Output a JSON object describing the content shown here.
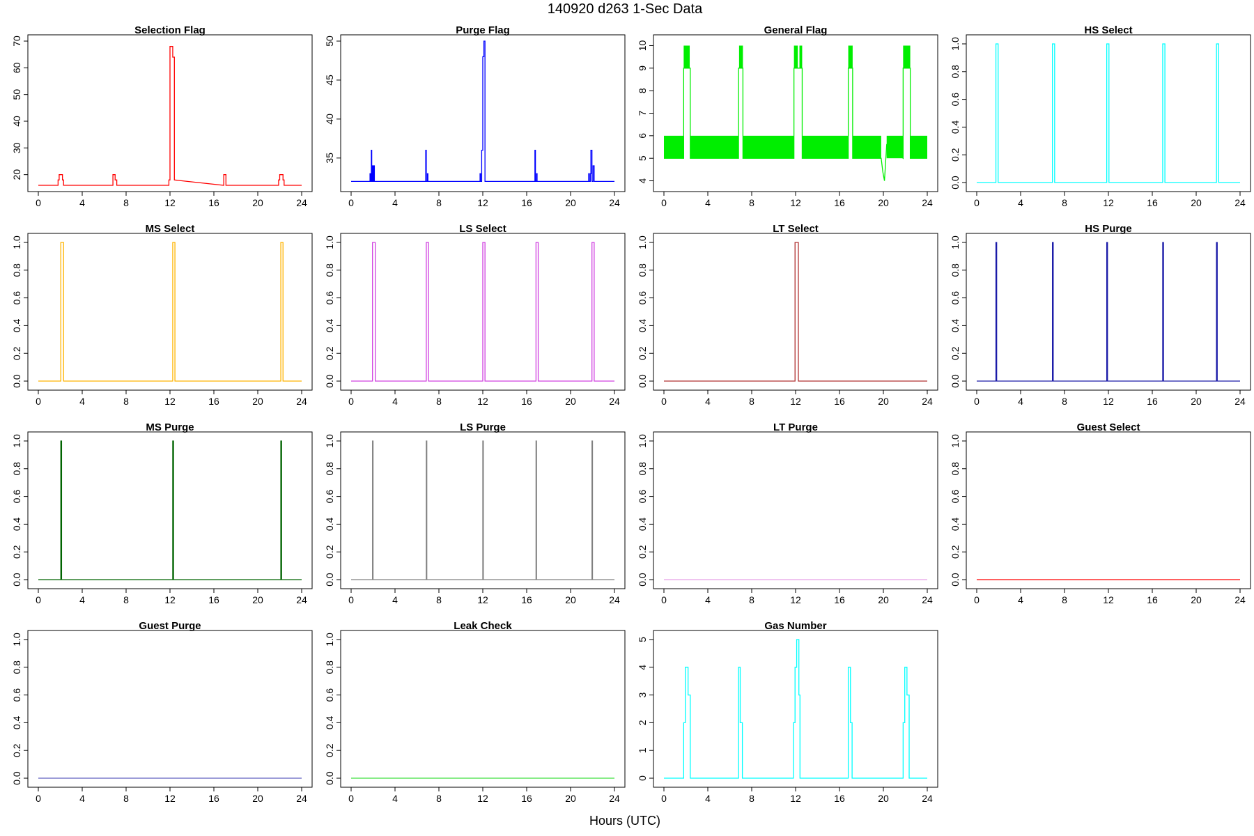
{
  "title": "140920   d263   1-Sec Data",
  "xlabel": "Hours (UTC)",
  "chart_data": [
    {
      "type": "line",
      "title": "Selection Flag",
      "color": "#ff0000",
      "xlim": [
        0,
        24
      ],
      "ylim": [
        16,
        70
      ],
      "xticks": [
        "0",
        "4",
        "8",
        "12",
        "16",
        "20",
        "24"
      ],
      "yticks": [
        "20",
        "30",
        "40",
        "50",
        "60",
        "70"
      ],
      "step": true,
      "x": [
        0,
        1.8,
        1.8,
        1.9,
        1.9,
        2.2,
        2.2,
        2.3,
        2.3,
        6.8,
        6.8,
        7.0,
        7.0,
        7.15,
        7.15,
        11.9,
        11.9,
        12.0,
        12.0,
        12.25,
        12.25,
        12.4,
        12.4,
        16.9,
        16.9,
        17.1,
        17.1,
        21.9,
        21.9,
        22.0,
        22.0,
        22.3,
        22.3,
        22.4,
        22.4,
        24
      ],
      "y": [
        16,
        16,
        18,
        18,
        20,
        20,
        18,
        18,
        16,
        16,
        20,
        20,
        18,
        18,
        16,
        16,
        18,
        18,
        68,
        68,
        64,
        64,
        18,
        16,
        20,
        20,
        16,
        16,
        18,
        18,
        20,
        20,
        18,
        18,
        16,
        16
      ]
    },
    {
      "type": "line",
      "title": "Purge Flag",
      "color": "#0000ff",
      "xlim": [
        0,
        24
      ],
      "ylim": [
        31.5,
        50
      ],
      "xticks": [
        "0",
        "4",
        "8",
        "12",
        "16",
        "20",
        "24"
      ],
      "yticks": [
        "35",
        "40",
        "45",
        "50"
      ],
      "x": [
        0,
        1.72,
        1.72,
        1.76,
        1.76,
        1.84,
        1.84,
        1.88,
        1.88,
        1.96,
        1.96,
        2.0,
        2.0,
        2.08,
        2.08,
        2.12,
        2.12,
        6.8,
        6.8,
        6.85,
        6.85,
        6.95,
        6.95,
        7.0,
        7.0,
        11.75,
        11.75,
        11.8,
        11.8,
        11.9,
        11.9,
        12.0,
        12.0,
        12.1,
        12.1,
        12.2,
        12.2,
        12.3,
        12.3,
        16.75,
        16.75,
        16.8,
        16.8,
        16.9,
        16.9,
        16.95,
        16.95,
        21.65,
        21.65,
        21.7,
        21.7,
        21.8,
        21.8,
        21.85,
        21.85,
        21.95,
        21.95,
        22.05,
        22.05,
        22.15,
        22.15,
        24
      ],
      "y": [
        32,
        32,
        33,
        33,
        32,
        32,
        36,
        36,
        32,
        32,
        34,
        34,
        32,
        32,
        34,
        34,
        32,
        32,
        36,
        36,
        32,
        32,
        33,
        33,
        32,
        32,
        33,
        33,
        32,
        32,
        36,
        36,
        48,
        48,
        50,
        50,
        32,
        32,
        32,
        32,
        36,
        36,
        32,
        32,
        33,
        33,
        32,
        32,
        33,
        33,
        32,
        32,
        33,
        33,
        36,
        36,
        32,
        32,
        34,
        34,
        32,
        32
      ]
    },
    {
      "type": "line",
      "title": "General Flag",
      "color": "#00ee00",
      "xlim": [
        0,
        24
      ],
      "ylim": [
        3.8,
        10.2
      ],
      "xticks": [
        "0",
        "4",
        "8",
        "12",
        "16",
        "20",
        "24"
      ],
      "yticks": [
        "4",
        "5",
        "6",
        "7",
        "8",
        "9",
        "10"
      ],
      "bands": [
        [
          0,
          1.8,
          5,
          6
        ],
        [
          2.4,
          6.8,
          5,
          6
        ],
        [
          7.2,
          11.85,
          5,
          6
        ],
        [
          12.6,
          16.8,
          5,
          6
        ],
        [
          17.2,
          19.8,
          5,
          6
        ],
        [
          20.3,
          21.8,
          5,
          6
        ],
        [
          22.45,
          24,
          5,
          6
        ],
        [
          1.8,
          2.35,
          9,
          10
        ],
        [
          6.85,
          7.2,
          9,
          10
        ],
        [
          11.85,
          12.2,
          9,
          10
        ],
        [
          12.35,
          12.6,
          9,
          10
        ],
        [
          16.8,
          17.2,
          9,
          10
        ],
        [
          21.8,
          22.45,
          9,
          10
        ]
      ],
      "x": [
        0,
        1.8,
        1.8,
        2.4,
        2.4,
        6.8,
        6.8,
        7.2,
        7.2,
        11.85,
        11.85,
        12.6,
        12.6,
        16.8,
        16.8,
        17.2,
        17.2,
        19.8,
        19.95,
        20.1,
        20.3,
        21.8,
        21.8,
        22.45,
        22.45,
        24
      ],
      "y": [
        5,
        5,
        9,
        9,
        5,
        5,
        9,
        9,
        5,
        5,
        9,
        9,
        5,
        5,
        9,
        9,
        5,
        5,
        4.4,
        4,
        5.6,
        5,
        9,
        9,
        5,
        5
      ]
    },
    {
      "type": "line",
      "title": "HS Select",
      "color": "#00ffff",
      "xlim": [
        0,
        24
      ],
      "ylim": [
        -0.02,
        1.02
      ],
      "xticks": [
        "0",
        "4",
        "8",
        "12",
        "16",
        "20",
        "24"
      ],
      "yticks": [
        "0.0",
        "0.2",
        "0.4",
        "0.6",
        "0.8",
        "1.0"
      ],
      "x": [
        0,
        1.75,
        1.75,
        1.95,
        1.95,
        6.9,
        6.9,
        7.1,
        7.1,
        11.85,
        11.85,
        12.05,
        12.05,
        16.95,
        16.95,
        17.15,
        17.15,
        21.85,
        21.85,
        22.05,
        22.05,
        24
      ],
      "y": [
        0,
        0,
        1,
        1,
        0,
        0,
        1,
        1,
        0,
        0,
        1,
        1,
        0,
        0,
        1,
        1,
        0,
        0,
        1,
        1,
        0,
        0
      ]
    },
    {
      "type": "line",
      "title": "MS Select",
      "color": "#ffb400",
      "xlim": [
        0,
        24
      ],
      "ylim": [
        -0.02,
        1.02
      ],
      "xticks": [
        "0",
        "4",
        "8",
        "12",
        "16",
        "20",
        "24"
      ],
      "yticks": [
        "0.0",
        "0.2",
        "0.4",
        "0.6",
        "0.8",
        "1.0"
      ],
      "x": [
        0,
        2.05,
        2.05,
        2.3,
        2.3,
        12.25,
        12.25,
        12.45,
        12.45,
        22.1,
        22.1,
        22.3,
        22.3,
        24
      ],
      "y": [
        0,
        0,
        1,
        1,
        0,
        0,
        1,
        1,
        0,
        0,
        1,
        1,
        0,
        0
      ]
    },
    {
      "type": "line",
      "title": "LS Select",
      "color": "#d040e0",
      "xlim": [
        0,
        24
      ],
      "ylim": [
        -0.02,
        1.02
      ],
      "xticks": [
        "0",
        "4",
        "8",
        "12",
        "16",
        "20",
        "24"
      ],
      "yticks": [
        "0.0",
        "0.2",
        "0.4",
        "0.6",
        "0.8",
        "1.0"
      ],
      "x": [
        0,
        1.95,
        1.95,
        2.2,
        2.2,
        6.85,
        6.85,
        7.05,
        7.05,
        12.0,
        12.0,
        12.2,
        12.2,
        16.85,
        16.85,
        17.05,
        17.05,
        21.95,
        21.95,
        22.15,
        22.15,
        24
      ],
      "y": [
        0,
        0,
        1,
        1,
        0,
        0,
        1,
        1,
        0,
        0,
        1,
        1,
        0,
        0,
        1,
        1,
        0,
        0,
        1,
        1,
        0,
        0
      ]
    },
    {
      "type": "line",
      "title": "LT Select",
      "color": "#b03030",
      "xlim": [
        0,
        24
      ],
      "ylim": [
        -0.02,
        1.02
      ],
      "xticks": [
        "0",
        "4",
        "8",
        "12",
        "16",
        "20",
        "24"
      ],
      "yticks": [
        "0.0",
        "0.2",
        "0.4",
        "0.6",
        "0.8",
        "1.0"
      ],
      "x": [
        0,
        11.95,
        11.95,
        12.25,
        12.25,
        24
      ],
      "y": [
        0,
        0,
        1,
        1,
        0,
        0
      ]
    },
    {
      "type": "line",
      "title": "HS Purge",
      "color": "#1a1aa8",
      "xlim": [
        0,
        24
      ],
      "ylim": [
        -0.02,
        1.02
      ],
      "xticks": [
        "0",
        "4",
        "8",
        "12",
        "16",
        "20",
        "24"
      ],
      "yticks": [
        "0.0",
        "0.2",
        "0.4",
        "0.6",
        "0.8",
        "1.0"
      ],
      "x": [
        0,
        1.75,
        1.75,
        1.82,
        1.82,
        6.9,
        6.9,
        6.97,
        6.97,
        11.85,
        11.85,
        11.92,
        11.92,
        16.95,
        16.95,
        17.02,
        17.02,
        21.85,
        21.85,
        21.92,
        21.92,
        24
      ],
      "y": [
        0,
        0,
        1,
        1,
        0,
        0,
        1,
        1,
        0,
        0,
        1,
        1,
        0,
        0,
        1,
        1,
        0,
        0,
        1,
        1,
        0,
        0
      ]
    },
    {
      "type": "line",
      "title": "MS Purge",
      "color": "#006400",
      "xlim": [
        0,
        24
      ],
      "ylim": [
        -0.02,
        1.02
      ],
      "xticks": [
        "0",
        "4",
        "8",
        "12",
        "16",
        "20",
        "24"
      ],
      "yticks": [
        "0.0",
        "0.2",
        "0.4",
        "0.6",
        "0.8",
        "1.0"
      ],
      "x": [
        0,
        2.05,
        2.05,
        2.12,
        2.12,
        12.25,
        12.25,
        12.32,
        12.32,
        22.1,
        22.1,
        22.17,
        22.17,
        24
      ],
      "y": [
        0,
        0,
        1,
        1,
        0,
        0,
        1,
        1,
        0,
        0,
        1,
        1,
        0,
        0
      ]
    },
    {
      "type": "line",
      "title": "LS Purge",
      "color": "#808080",
      "xlim": [
        0,
        24
      ],
      "ylim": [
        -0.02,
        1.02
      ],
      "xticks": [
        "0",
        "4",
        "8",
        "12",
        "16",
        "20",
        "24"
      ],
      "yticks": [
        "0.0",
        "0.2",
        "0.4",
        "0.6",
        "0.8",
        "1.0"
      ],
      "x": [
        0,
        1.95,
        1.95,
        2.0,
        2.0,
        6.85,
        6.85,
        6.9,
        6.9,
        12.0,
        12.0,
        12.05,
        12.05,
        16.85,
        16.85,
        16.9,
        16.9,
        21.95,
        21.95,
        22.0,
        22.0,
        24
      ],
      "y": [
        0,
        0,
        1,
        1,
        0,
        0,
        1,
        1,
        0,
        0,
        1,
        1,
        0,
        0,
        1,
        1,
        0,
        0,
        1,
        1,
        0,
        0
      ]
    },
    {
      "type": "line",
      "title": "LT Purge",
      "color": "#e8a0e8",
      "xlim": [
        0,
        24
      ],
      "ylim": [
        -0.02,
        1.02
      ],
      "xticks": [
        "0",
        "4",
        "8",
        "12",
        "16",
        "20",
        "24"
      ],
      "yticks": [
        "0.0",
        "0.2",
        "0.4",
        "0.6",
        "0.8",
        "1.0"
      ],
      "x": [
        0,
        24
      ],
      "y": [
        0,
        0
      ]
    },
    {
      "type": "line",
      "title": "Guest Select",
      "color": "#ff0000",
      "xlim": [
        0,
        24
      ],
      "ylim": [
        -0.02,
        1.02
      ],
      "xticks": [
        "0",
        "4",
        "8",
        "12",
        "16",
        "20",
        "24"
      ],
      "yticks": [
        "0.0",
        "0.2",
        "0.4",
        "0.6",
        "0.8",
        "1.0"
      ],
      "x": [
        0,
        24
      ],
      "y": [
        0,
        0
      ]
    },
    {
      "type": "line",
      "title": "Guest Purge",
      "color": "#6060c0",
      "xlim": [
        0,
        24
      ],
      "ylim": [
        -0.02,
        1.02
      ],
      "xticks": [
        "0",
        "4",
        "8",
        "12",
        "16",
        "20",
        "24"
      ],
      "yticks": [
        "0.0",
        "0.2",
        "0.4",
        "0.6",
        "0.8",
        "1.0"
      ],
      "x": [
        0,
        24
      ],
      "y": [
        0,
        0
      ]
    },
    {
      "type": "line",
      "title": "Leak Check",
      "color": "#40e040",
      "xlim": [
        0,
        24
      ],
      "ylim": [
        -0.02,
        1.02
      ],
      "xticks": [
        "0",
        "4",
        "8",
        "12",
        "16",
        "20",
        "24"
      ],
      "yticks": [
        "0.0",
        "0.2",
        "0.4",
        "0.6",
        "0.8",
        "1.0"
      ],
      "x": [
        0,
        24
      ],
      "y": [
        0,
        0
      ]
    },
    {
      "type": "line",
      "title": "Gas Number",
      "color": "#00ffff",
      "xlim": [
        0,
        24
      ],
      "ylim": [
        -0.1,
        5.1
      ],
      "xticks": [
        "0",
        "4",
        "8",
        "12",
        "16",
        "20",
        "24"
      ],
      "yticks": [
        "0",
        "1",
        "2",
        "3",
        "4",
        "5"
      ],
      "x": [
        0,
        1.8,
        1.8,
        1.95,
        1.95,
        2.2,
        2.2,
        2.4,
        2.4,
        6.8,
        6.8,
        6.95,
        6.95,
        7.15,
        7.15,
        11.8,
        11.8,
        11.95,
        11.95,
        12.1,
        12.1,
        12.3,
        12.3,
        12.4,
        12.4,
        16.8,
        16.8,
        17.0,
        17.0,
        17.15,
        17.15,
        21.8,
        21.8,
        21.95,
        21.95,
        22.15,
        22.15,
        22.35,
        22.35,
        24
      ],
      "y": [
        0,
        0,
        2,
        2,
        4,
        4,
        3,
        3,
        0,
        0,
        4,
        4,
        2,
        2,
        0,
        0,
        2,
        2,
        4,
        4,
        5,
        5,
        3,
        3,
        0,
        0,
        4,
        4,
        2,
        2,
        0,
        0,
        2,
        2,
        4,
        4,
        3,
        3,
        0,
        0
      ]
    }
  ]
}
